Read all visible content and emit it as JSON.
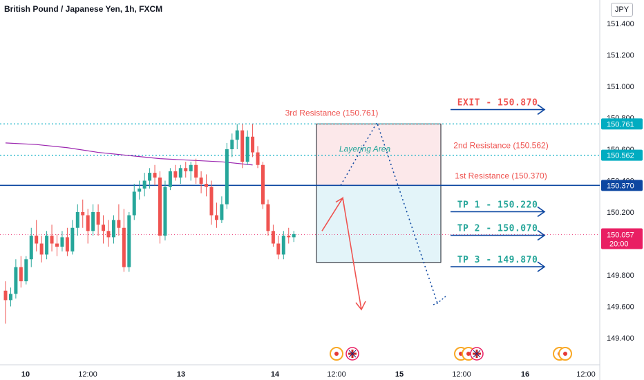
{
  "header": {
    "title": "British Pound / Japanese Yen, 1h, FXCM",
    "currency_button": "JPY"
  },
  "colors": {
    "up": "#26a69a",
    "down": "#ef5350",
    "ma": "#9c27b0",
    "resistance": "#00acc1",
    "blue_line": "#0d47a1",
    "arrow_blue": "#0d47a1",
    "arrow_red": "#ef5350",
    "zone_top": "#fce8ea",
    "zone_bottom": "#e3f4f9",
    "current": "#e91e63"
  },
  "chart_data": {
    "type": "candlestick",
    "ylim": [
      149.23,
      151.5
    ],
    "y_ticks": [
      "151.400",
      "151.200",
      "151.000",
      "150.800",
      "150.600",
      "150.400",
      "150.200",
      "150.000",
      "149.800",
      "149.600",
      "149.400"
    ],
    "x_ticks": [
      "10",
      "12:00",
      "13",
      "12:00",
      "14",
      "12:00",
      "15",
      "12:00",
      "16",
      "12:00"
    ],
    "candles": [
      [
        149.7,
        149.76,
        149.49,
        149.64
      ],
      [
        149.64,
        149.72,
        149.6,
        149.68
      ],
      [
        149.68,
        149.9,
        149.65,
        149.85
      ],
      [
        149.85,
        149.92,
        149.72,
        149.76
      ],
      [
        149.76,
        149.92,
        149.74,
        149.9
      ],
      [
        149.9,
        150.1,
        149.85,
        150.05
      ],
      [
        150.05,
        150.15,
        149.95,
        150.0
      ],
      [
        150.0,
        150.05,
        149.88,
        149.93
      ],
      [
        149.93,
        150.08,
        149.9,
        150.05
      ],
      [
        150.05,
        150.12,
        149.95,
        150.0
      ],
      [
        150.0,
        150.06,
        149.92,
        149.98
      ],
      [
        149.98,
        150.08,
        149.95,
        150.04
      ],
      [
        150.04,
        150.1,
        149.92,
        149.95
      ],
      [
        149.95,
        150.15,
        149.93,
        150.1
      ],
      [
        150.1,
        150.25,
        150.05,
        150.2
      ],
      [
        150.2,
        150.28,
        150.1,
        150.18
      ],
      [
        150.18,
        150.22,
        150.0,
        150.08
      ],
      [
        150.08,
        150.25,
        150.05,
        150.2
      ],
      [
        150.2,
        150.25,
        150.05,
        150.12
      ],
      [
        150.12,
        150.18,
        150.0,
        150.08
      ],
      [
        150.08,
        150.15,
        149.98,
        150.04
      ],
      [
        150.04,
        150.18,
        150.0,
        150.15
      ],
      [
        150.15,
        150.25,
        150.05,
        150.1
      ],
      [
        150.1,
        150.22,
        149.82,
        149.85
      ],
      [
        149.85,
        150.2,
        149.82,
        150.18
      ],
      [
        150.18,
        150.38,
        150.15,
        150.33
      ],
      [
        150.33,
        150.4,
        150.28,
        150.35
      ],
      [
        150.35,
        150.45,
        150.3,
        150.4
      ],
      [
        150.4,
        150.48,
        150.35,
        150.45
      ],
      [
        150.45,
        150.5,
        150.37,
        150.42
      ],
      [
        150.42,
        150.46,
        150.0,
        150.05
      ],
      [
        150.05,
        150.4,
        150.02,
        150.36
      ],
      [
        150.36,
        150.48,
        150.34,
        150.46
      ],
      [
        150.46,
        150.5,
        150.4,
        150.42
      ],
      [
        150.42,
        150.5,
        150.38,
        150.48
      ],
      [
        150.48,
        150.52,
        150.42,
        150.46
      ],
      [
        150.46,
        150.52,
        150.4,
        150.5
      ],
      [
        150.5,
        150.54,
        150.38,
        150.42
      ],
      [
        150.42,
        150.46,
        150.32,
        150.38
      ],
      [
        150.38,
        150.44,
        150.3,
        150.36
      ],
      [
        150.36,
        150.4,
        150.12,
        150.18
      ],
      [
        150.18,
        150.26,
        150.1,
        150.15
      ],
      [
        150.15,
        150.3,
        150.13,
        150.25
      ],
      [
        150.25,
        150.64,
        150.22,
        150.6
      ],
      [
        150.6,
        150.7,
        150.55,
        150.66
      ],
      [
        150.66,
        150.76,
        150.6,
        150.72
      ],
      [
        150.72,
        150.76,
        150.48,
        150.52
      ],
      [
        150.52,
        150.72,
        150.5,
        150.68
      ],
      [
        150.68,
        150.76,
        150.55,
        150.58
      ],
      [
        150.58,
        150.62,
        150.48,
        150.5
      ],
      [
        150.5,
        150.52,
        150.22,
        150.25
      ],
      [
        150.25,
        150.28,
        150.05,
        150.08
      ],
      [
        150.08,
        150.12,
        149.98,
        150.0
      ],
      [
        150.0,
        150.05,
        149.9,
        149.93
      ],
      [
        149.93,
        150.08,
        149.9,
        150.05
      ],
      [
        150.05,
        150.1,
        150.0,
        150.04
      ],
      [
        150.04,
        150.08,
        150.01,
        150.06
      ]
    ],
    "moving_average": [
      [
        0.0,
        150.64
      ],
      [
        6.0,
        150.63
      ],
      [
        12.0,
        150.61
      ],
      [
        18.0,
        150.58
      ],
      [
        24.0,
        150.56
      ],
      [
        30.0,
        150.54
      ],
      [
        36.0,
        150.53
      ],
      [
        42.0,
        150.52
      ],
      [
        48.0,
        150.5
      ]
    ],
    "current_price": {
      "value": 150.057,
      "label": "150.057",
      "countdown": "20:00"
    },
    "lines": [
      {
        "value": 150.761,
        "label": "3rd Resistance (150.761)",
        "axis_label": "150.761",
        "style": "dotted"
      },
      {
        "value": 150.562,
        "label": "2nd Resistance (150.562)",
        "axis_label": "150.562",
        "style": "dotted"
      },
      {
        "value": 150.37,
        "label": "1st Resistance (150.370)",
        "axis_label": "150.370",
        "style": "solid"
      }
    ],
    "zone": {
      "top": 150.761,
      "mid": 150.37,
      "bottom": 149.88,
      "label": "Layering Area"
    },
    "targets": [
      {
        "value": 150.87,
        "label": "EXIT - 150.870",
        "color": "#ef5350"
      },
      {
        "value": 150.22,
        "label": "TP 1 - 150.220",
        "color": "#26a69a"
      },
      {
        "value": 150.07,
        "label": "TP 2 - 150.070",
        "color": "#26a69a"
      },
      {
        "value": 149.87,
        "label": "TP 3 - 149.870",
        "color": "#26a69a"
      }
    ],
    "path_blue": [
      [
        0.0,
        150.37
      ],
      [
        3.0,
        150.77
      ],
      [
        8.0,
        149.62
      ]
    ],
    "path_red": [
      [
        0.0,
        150.08
      ],
      [
        2.0,
        150.29
      ],
      [
        3.8,
        149.58
      ]
    ]
  }
}
